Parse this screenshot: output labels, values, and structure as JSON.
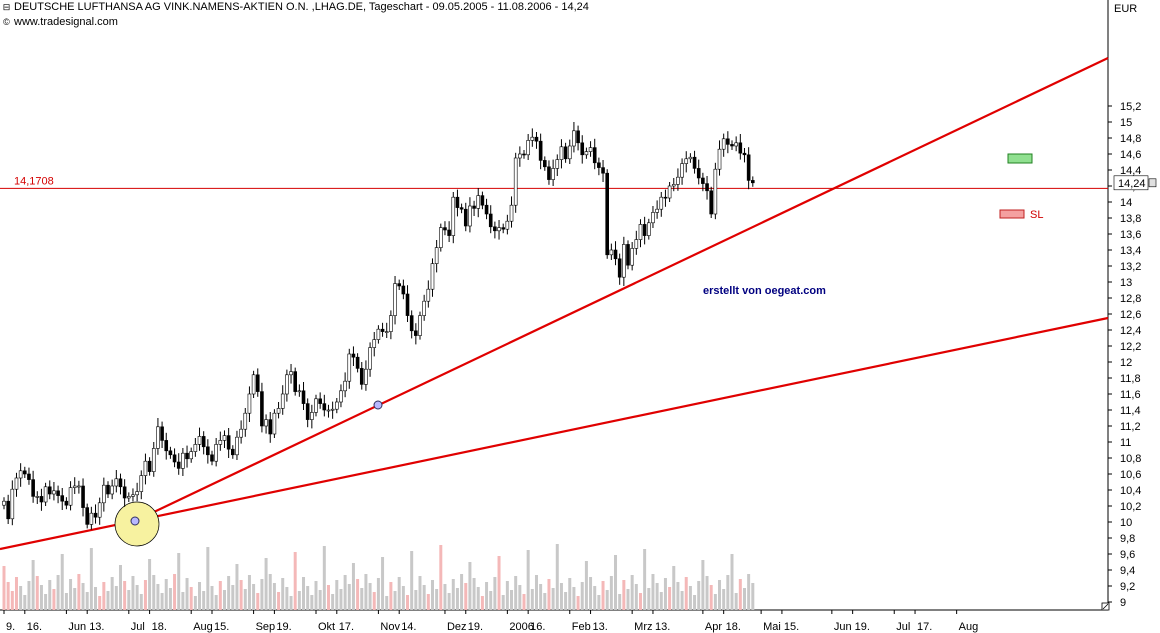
{
  "header": {
    "title": "DEUTSCHE LUFTHANSA AG VINK.NAMENS-AKTIEN O.N. ,LHAG.DE, Tageschart - 09.05.2005 - 11.08.2006 - 14,24",
    "source": "www.tradesignal.com",
    "title_icon": "collapse-box-icon",
    "source_icon": "copyright-icon"
  },
  "colors": {
    "candle": "#000000",
    "up_body": "#ffffff",
    "trendline": "#e00000",
    "hline": "#d40000",
    "volume": "#c8c8c8",
    "volume_red": "#f4b8b8",
    "highlight": "#f7f2a0",
    "tp_box": "#90e090",
    "sl_box": "#f4a0a0",
    "watermark": "#000080"
  },
  "chart_data": {
    "type": "candlestick",
    "title": "DEUTSCHE LUFTHANSA AG VINK.NAMENS-AKTIEN O.N. ,LHAG.DE, Tageschart - 09.05.2005 - 11.08.2006 - 14,24",
    "currency": "EUR",
    "ylim": [
      8.9,
      15.4
    ],
    "yticks": [
      "15,2",
      "15",
      "14,8",
      "14,6",
      "14,4",
      "14,2",
      "14",
      "13,8",
      "13,6",
      "13,4",
      "13,2",
      "13",
      "12,8",
      "12,6",
      "12,4",
      "12,2",
      "12",
      "11,8",
      "11,6",
      "11,4",
      "11,2",
      "11",
      "10,8",
      "10,6",
      "10,4",
      "10,2",
      "10",
      "9,8",
      "9,6",
      "9,4",
      "9,2",
      "9"
    ],
    "ytick_values": [
      15.2,
      15.0,
      14.8,
      14.6,
      14.4,
      14.2,
      14.0,
      13.8,
      13.6,
      13.4,
      13.2,
      13.0,
      12.8,
      12.6,
      12.4,
      12.2,
      12.0,
      11.8,
      11.6,
      11.4,
      11.2,
      11.0,
      10.8,
      10.6,
      10.4,
      10.2,
      10.0,
      9.8,
      9.6,
      9.4,
      9.2,
      9.0
    ],
    "xticks": [
      "9.",
      "16.",
      "Jun",
      "13.",
      "Jul",
      "18.",
      "Aug",
      "15.",
      "Sep",
      "19.",
      "Okt",
      "17.",
      "Nov",
      "14.",
      "Dez",
      "19.",
      "2006",
      "16.",
      "Feb",
      "13.",
      "Mrz",
      "13.",
      "Apr",
      "18.",
      "Mai",
      "15.",
      "Jun",
      "19.",
      "Jul",
      "17.",
      "Aug"
    ],
    "xtick_bars": [
      0,
      5,
      15,
      20,
      30,
      35,
      45,
      50,
      60,
      65,
      75,
      80,
      90,
      95,
      106,
      111,
      121,
      126,
      136,
      141,
      151,
      156,
      168,
      173,
      182,
      187,
      199,
      204,
      214,
      219,
      229
    ],
    "last_price": 14.24,
    "last_price_label": "14,24",
    "hline_value": 14.1708,
    "hline_label": "14,1708",
    "watermark": "erstellt von oegeat.com",
    "target_marker_price": 14.55,
    "stop_loss_label": "SL",
    "stop_loss_price": 13.85,
    "volume_red_bars": [
      0,
      1,
      2,
      3,
      8,
      12,
      18,
      23,
      24,
      29,
      34,
      41,
      45,
      52,
      57,
      61,
      66,
      70,
      78,
      85,
      89,
      93,
      97,
      102,
      105,
      111,
      115,
      119,
      125,
      131,
      138,
      144,
      149,
      153,
      160,
      164,
      170,
      177,
      181,
      186,
      192,
      196,
      201,
      207,
      213,
      219,
      225,
      230,
      237,
      244
    ],
    "closes": [
      10.26,
      10.04,
      10.41,
      10.55,
      10.64,
      10.6,
      10.53,
      10.32,
      10.32,
      10.25,
      10.44,
      10.35,
      10.39,
      10.33,
      10.26,
      10.21,
      10.43,
      10.45,
      10.45,
      10.18,
      9.97,
      10.11,
      10.06,
      10.24,
      10.46,
      10.35,
      10.45,
      10.54,
      10.44,
      10.3,
      10.32,
      10.34,
      10.38,
      10.58,
      10.76,
      10.63,
      10.92,
      11.19,
      11.02,
      10.89,
      10.84,
      10.75,
      10.67,
      10.86,
      10.79,
      10.88,
      10.97,
      11.07,
      10.94,
      10.84,
      10.76,
      10.97,
      11.02,
      11.08,
      10.91,
      10.84,
      11.06,
      11.16,
      11.36,
      11.6,
      11.84,
      11.63,
      11.2,
      11.28,
      11.1,
      11.36,
      11.42,
      11.6,
      11.84,
      11.88,
      11.63,
      11.64,
      11.48,
      11.28,
      11.37,
      11.54,
      11.48,
      11.4,
      11.4,
      11.41,
      11.5,
      11.64,
      11.76,
      12.1,
      12.06,
      11.92,
      11.72,
      11.91,
      12.18,
      12.28,
      12.41,
      12.38,
      12.38,
      12.58,
      12.98,
      12.95,
      12.85,
      12.58,
      12.39,
      12.33,
      12.58,
      12.76,
      12.91,
      13.23,
      13.43,
      13.68,
      13.65,
      13.58,
      14.06,
      13.93,
      13.91,
      13.7,
      13.95,
      13.92,
      14.08,
      13.96,
      13.85,
      13.69,
      13.64,
      13.68,
      13.66,
      13.76,
      13.96,
      14.55,
      14.6,
      14.59,
      14.77,
      14.81,
      14.76,
      14.52,
      14.44,
      14.28,
      14.42,
      14.53,
      14.69,
      14.54,
      14.7,
      14.89,
      14.74,
      14.59,
      14.63,
      14.68,
      14.49,
      14.43,
      14.36,
      13.34,
      13.4,
      13.29,
      13.06,
      13.47,
      13.21,
      13.42,
      13.53,
      13.72,
      13.58,
      13.74,
      13.87,
      13.91,
      14.06,
      14.05,
      14.2,
      14.22,
      14.31,
      14.48,
      14.54,
      14.56,
      14.42,
      14.3,
      14.23,
      14.14,
      13.85,
      14.41,
      14.66,
      14.79,
      14.72,
      14.7,
      14.74,
      14.61,
      14.59,
      14.27,
      14.24
    ]
  }
}
